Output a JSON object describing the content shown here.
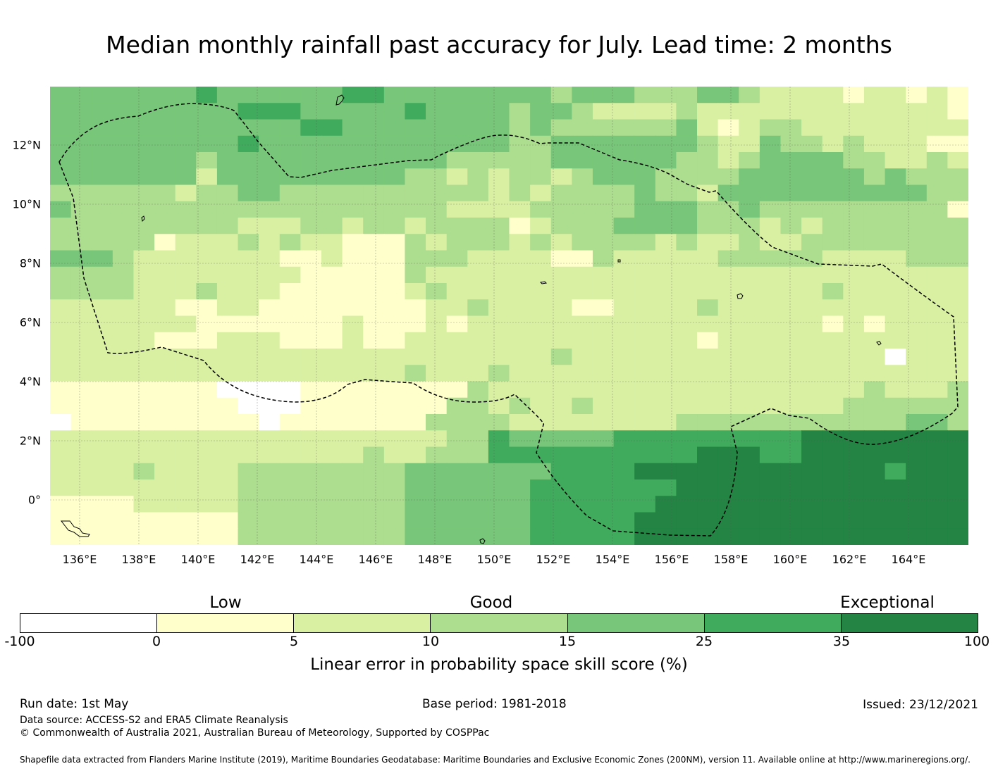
{
  "title": "Median monthly rainfall past accuracy for July. Lead time: 2 months",
  "map": {
    "lon_labels": [
      "136°E",
      "138°E",
      "140°E",
      "142°E",
      "144°E",
      "146°E",
      "148°E",
      "150°E",
      "152°E",
      "154°E",
      "156°E",
      "158°E",
      "160°E",
      "162°E",
      "164°E"
    ],
    "lat_labels": [
      "12°N",
      "10°N",
      "8°N",
      "6°N",
      "4°N",
      "2°N",
      "0°"
    ],
    "category_colors": [
      "#ffffff",
      "#ffffcc",
      "#d9f0a3",
      "#addd8e",
      "#78c679",
      "#41ab5d",
      "#238443"
    ],
    "boundary_style": "dashed",
    "region_summary": "Lighter greens/yellows in the west and centre (skill 0-15%), darker greens (25-100%) concentrated south-east near the equator east of 152°E."
  },
  "legend": {
    "category_labels": [
      "Low",
      "Good",
      "Exceptional"
    ],
    "ticks": [
      "-100",
      "0",
      "5",
      "10",
      "15",
      "25",
      "35",
      "100"
    ],
    "colorbar_label": "Linear error in probability space skill score (%)"
  },
  "footer": {
    "run_date": "Run date: 1st May",
    "base_period": "Base period: 1981-2018",
    "issued": "Issued: 23/12/2021",
    "data_source": "Data source: ACCESS-S2 and ERA5 Climate Reanalysis",
    "copyright": "© Commonwealth of Australia 2021, Australian Bureau of Meteorology, Supported by COSPPac",
    "shapefile_note": "Shapefile data extracted from Flanders Marine Institute (2019), Maritime Boundaries Geodatabase: Maritime Boundaries and Exclusive Economic Zones (200NM), version 11. Available online at http://www.marineregions.org/."
  }
}
